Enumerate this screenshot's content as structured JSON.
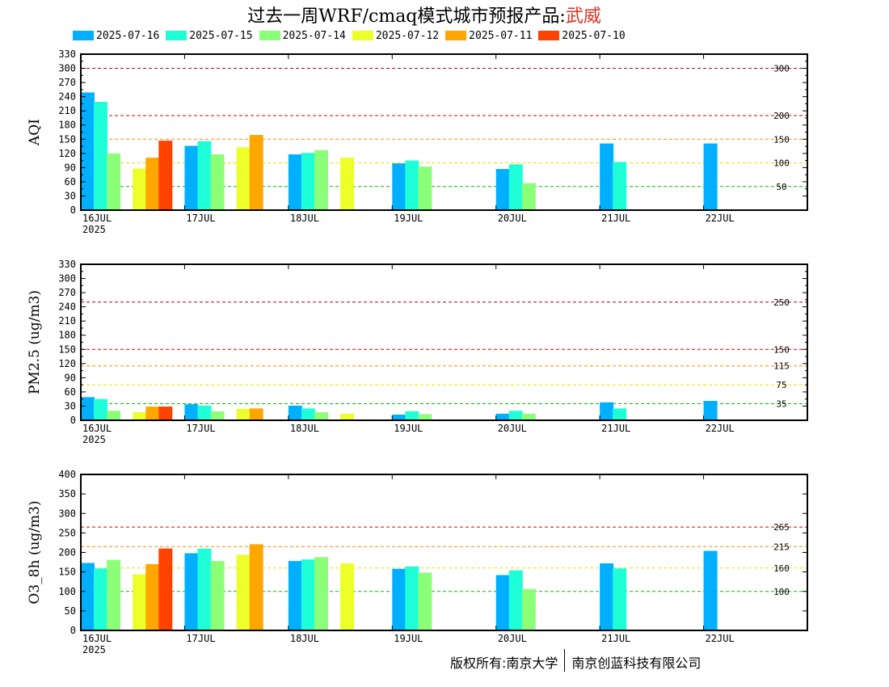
{
  "title": {
    "text": "过去一周WRF/cmaq模式城市预报产品:",
    "city": "武威"
  },
  "legend": [
    {
      "label": "2025-07-16",
      "color": "#00b0ff"
    },
    {
      "label": "2025-07-15",
      "color": "#1effd8"
    },
    {
      "label": "2025-07-14",
      "color": "#8cff78"
    },
    {
      "label": "2025-07-12",
      "color": "#ecff28"
    },
    {
      "label": "2025-07-11",
      "color": "#ffa600"
    },
    {
      "label": "2025-07-10",
      "color": "#ff4200"
    }
  ],
  "footer": {
    "left": "版权所有:南京大学",
    "right": "南京创蓝科技有限公司"
  },
  "chart_data": [
    {
      "type": "bar",
      "ylabel": "AQI",
      "ylim": [
        0,
        330
      ],
      "yticks": [
        0,
        30,
        45,
        60,
        75,
        90,
        105,
        120,
        135,
        150,
        165,
        180,
        195,
        210,
        225,
        240,
        255,
        270,
        285,
        300,
        315,
        330
      ],
      "yticklabels": [
        "0",
        "30",
        "",
        "60",
        "",
        "90",
        "",
        "120",
        "",
        "150",
        "",
        "180",
        "",
        "210",
        "",
        "240",
        "",
        "270",
        "",
        "300",
        "",
        "330"
      ],
      "xlim": [
        16,
        23
      ],
      "xticks": [
        16,
        17,
        18,
        19,
        20,
        21,
        22
      ],
      "xticklabels": [
        "16JUL",
        "17JUL",
        "18JUL",
        "19JUL",
        "20JUL",
        "21JUL",
        "22JUL"
      ],
      "year_label": "2025",
      "thresholds": [
        {
          "value": 300,
          "label": "300",
          "color": "#b0003a"
        },
        {
          "value": 200,
          "label": "200",
          "color": "#e00000"
        },
        {
          "value": 150,
          "label": "150",
          "color": "#ff8c00"
        },
        {
          "value": 100,
          "label": "100",
          "color": "#f0e000"
        },
        {
          "value": 50,
          "label": "50",
          "color": "#00c000"
        }
      ],
      "series": [
        {
          "name": "2025-07-16",
          "values": [
            {
              "x": 16,
              "y": 249
            },
            {
              "x": 17,
              "y": 136
            },
            {
              "x": 18,
              "y": 118
            },
            {
              "x": 19,
              "y": 99
            },
            {
              "x": 20,
              "y": 87
            },
            {
              "x": 21,
              "y": 141
            },
            {
              "x": 22,
              "y": 141
            }
          ]
        },
        {
          "name": "2025-07-15",
          "values": [
            {
              "x": 16.125,
              "y": 229
            },
            {
              "x": 17.125,
              "y": 146
            },
            {
              "x": 18.125,
              "y": 121
            },
            {
              "x": 19.125,
              "y": 105
            },
            {
              "x": 20.125,
              "y": 97
            },
            {
              "x": 21.125,
              "y": 102
            }
          ]
        },
        {
          "name": "2025-07-14",
          "values": [
            {
              "x": 16.25,
              "y": 120
            },
            {
              "x": 17.25,
              "y": 118
            },
            {
              "x": 18.25,
              "y": 127
            },
            {
              "x": 19.25,
              "y": 92
            },
            {
              "x": 20.25,
              "y": 57
            }
          ]
        },
        {
          "name": "2025-07-12",
          "values": [
            {
              "x": 16.5,
              "y": 88
            },
            {
              "x": 17.5,
              "y": 133
            },
            {
              "x": 18.5,
              "y": 111
            }
          ]
        },
        {
          "name": "2025-07-11",
          "values": [
            {
              "x": 16.625,
              "y": 111
            },
            {
              "x": 17.625,
              "y": 159
            }
          ]
        },
        {
          "name": "2025-07-10",
          "values": [
            {
              "x": 16.75,
              "y": 147
            }
          ]
        }
      ]
    },
    {
      "type": "bar",
      "ylabel": "PM2.5 (ug/m3)",
      "ylim": [
        0,
        330
      ],
      "yticks": [
        0,
        30,
        45,
        60,
        75,
        90,
        105,
        120,
        135,
        150,
        165,
        180,
        195,
        210,
        225,
        240,
        255,
        270,
        285,
        300,
        315,
        330
      ],
      "yticklabels": [
        "0",
        "30",
        "",
        "60",
        "",
        "90",
        "",
        "120",
        "",
        "150",
        "",
        "180",
        "",
        "210",
        "",
        "240",
        "",
        "270",
        "",
        "300",
        "",
        "330"
      ],
      "xlim": [
        16,
        23
      ],
      "xticks": [
        16,
        17,
        18,
        19,
        20,
        21,
        22
      ],
      "xticklabels": [
        "16JUL",
        "17JUL",
        "18JUL",
        "19JUL",
        "20JUL",
        "21JUL",
        "22JUL"
      ],
      "year_label": "2025",
      "thresholds": [
        {
          "value": 250,
          "label": "250",
          "color": "#b0003a"
        },
        {
          "value": 150,
          "label": "150",
          "color": "#e00000"
        },
        {
          "value": 115,
          "label": "115",
          "color": "#ff8c00"
        },
        {
          "value": 75,
          "label": "75",
          "color": "#f0e000"
        },
        {
          "value": 35,
          "label": "35",
          "color": "#00c000"
        }
      ],
      "series": [
        {
          "name": "2025-07-16",
          "values": [
            {
              "x": 16,
              "y": 49
            },
            {
              "x": 17,
              "y": 34
            },
            {
              "x": 18,
              "y": 31
            },
            {
              "x": 19,
              "y": 12
            },
            {
              "x": 20,
              "y": 14
            },
            {
              "x": 21,
              "y": 38
            },
            {
              "x": 22,
              "y": 41
            }
          ]
        },
        {
          "name": "2025-07-15",
          "values": [
            {
              "x": 16.125,
              "y": 45
            },
            {
              "x": 17.125,
              "y": 31
            },
            {
              "x": 18.125,
              "y": 25
            },
            {
              "x": 19.125,
              "y": 19
            },
            {
              "x": 20.125,
              "y": 20
            },
            {
              "x": 21.125,
              "y": 25
            }
          ]
        },
        {
          "name": "2025-07-14",
          "values": [
            {
              "x": 16.25,
              "y": 20
            },
            {
              "x": 17.25,
              "y": 19
            },
            {
              "x": 18.25,
              "y": 17
            },
            {
              "x": 19.25,
              "y": 13
            },
            {
              "x": 20.25,
              "y": 14
            }
          ]
        },
        {
          "name": "2025-07-12",
          "values": [
            {
              "x": 16.5,
              "y": 17
            },
            {
              "x": 17.5,
              "y": 24
            },
            {
              "x": 18.5,
              "y": 14
            }
          ]
        },
        {
          "name": "2025-07-11",
          "values": [
            {
              "x": 16.625,
              "y": 29
            },
            {
              "x": 17.625,
              "y": 25
            }
          ]
        },
        {
          "name": "2025-07-10",
          "values": [
            {
              "x": 16.75,
              "y": 29
            }
          ]
        }
      ]
    },
    {
      "type": "bar",
      "ylabel": "O3_8h (ug/m3)",
      "ylim": [
        0,
        400
      ],
      "yticks": [
        0,
        50,
        100,
        150,
        200,
        250,
        300,
        350,
        400
      ],
      "yticklabels": [
        "0",
        "50",
        "100",
        "150",
        "200",
        "250",
        "300",
        "350",
        "400"
      ],
      "xlim": [
        16,
        23
      ],
      "xticks": [
        16,
        17,
        18,
        19,
        20,
        21,
        22
      ],
      "xticklabels": [
        "16JUL",
        "17JUL",
        "18JUL",
        "19JUL",
        "20JUL",
        "21JUL",
        "22JUL"
      ],
      "year_label": "2025",
      "thresholds": [
        {
          "value": 265,
          "label": "265",
          "color": "#e00000"
        },
        {
          "value": 215,
          "label": "215",
          "color": "#ff8c00"
        },
        {
          "value": 160,
          "label": "160",
          "color": "#f0e000"
        },
        {
          "value": 100,
          "label": "100",
          "color": "#00c000"
        }
      ],
      "series": [
        {
          "name": "2025-07-16",
          "values": [
            {
              "x": 16,
              "y": 173
            },
            {
              "x": 17,
              "y": 198
            },
            {
              "x": 18,
              "y": 178
            },
            {
              "x": 19,
              "y": 158
            },
            {
              "x": 20,
              "y": 142
            },
            {
              "x": 21,
              "y": 172
            },
            {
              "x": 22,
              "y": 204
            }
          ]
        },
        {
          "name": "2025-07-15",
          "values": [
            {
              "x": 16.125,
              "y": 159
            },
            {
              "x": 17.125,
              "y": 210
            },
            {
              "x": 18.125,
              "y": 182
            },
            {
              "x": 19.125,
              "y": 164
            },
            {
              "x": 20.125,
              "y": 154
            },
            {
              "x": 21.125,
              "y": 159
            }
          ]
        },
        {
          "name": "2025-07-14",
          "values": [
            {
              "x": 16.25,
              "y": 181
            },
            {
              "x": 17.25,
              "y": 178
            },
            {
              "x": 18.25,
              "y": 188
            },
            {
              "x": 19.25,
              "y": 148
            },
            {
              "x": 20.25,
              "y": 106
            }
          ]
        },
        {
          "name": "2025-07-12",
          "values": [
            {
              "x": 16.5,
              "y": 144
            },
            {
              "x": 17.5,
              "y": 194
            },
            {
              "x": 18.5,
              "y": 172
            }
          ]
        },
        {
          "name": "2025-07-11",
          "values": [
            {
              "x": 16.625,
              "y": 170
            },
            {
              "x": 17.625,
              "y": 221
            }
          ]
        },
        {
          "name": "2025-07-10",
          "values": [
            {
              "x": 16.75,
              "y": 210
            }
          ]
        }
      ]
    }
  ]
}
